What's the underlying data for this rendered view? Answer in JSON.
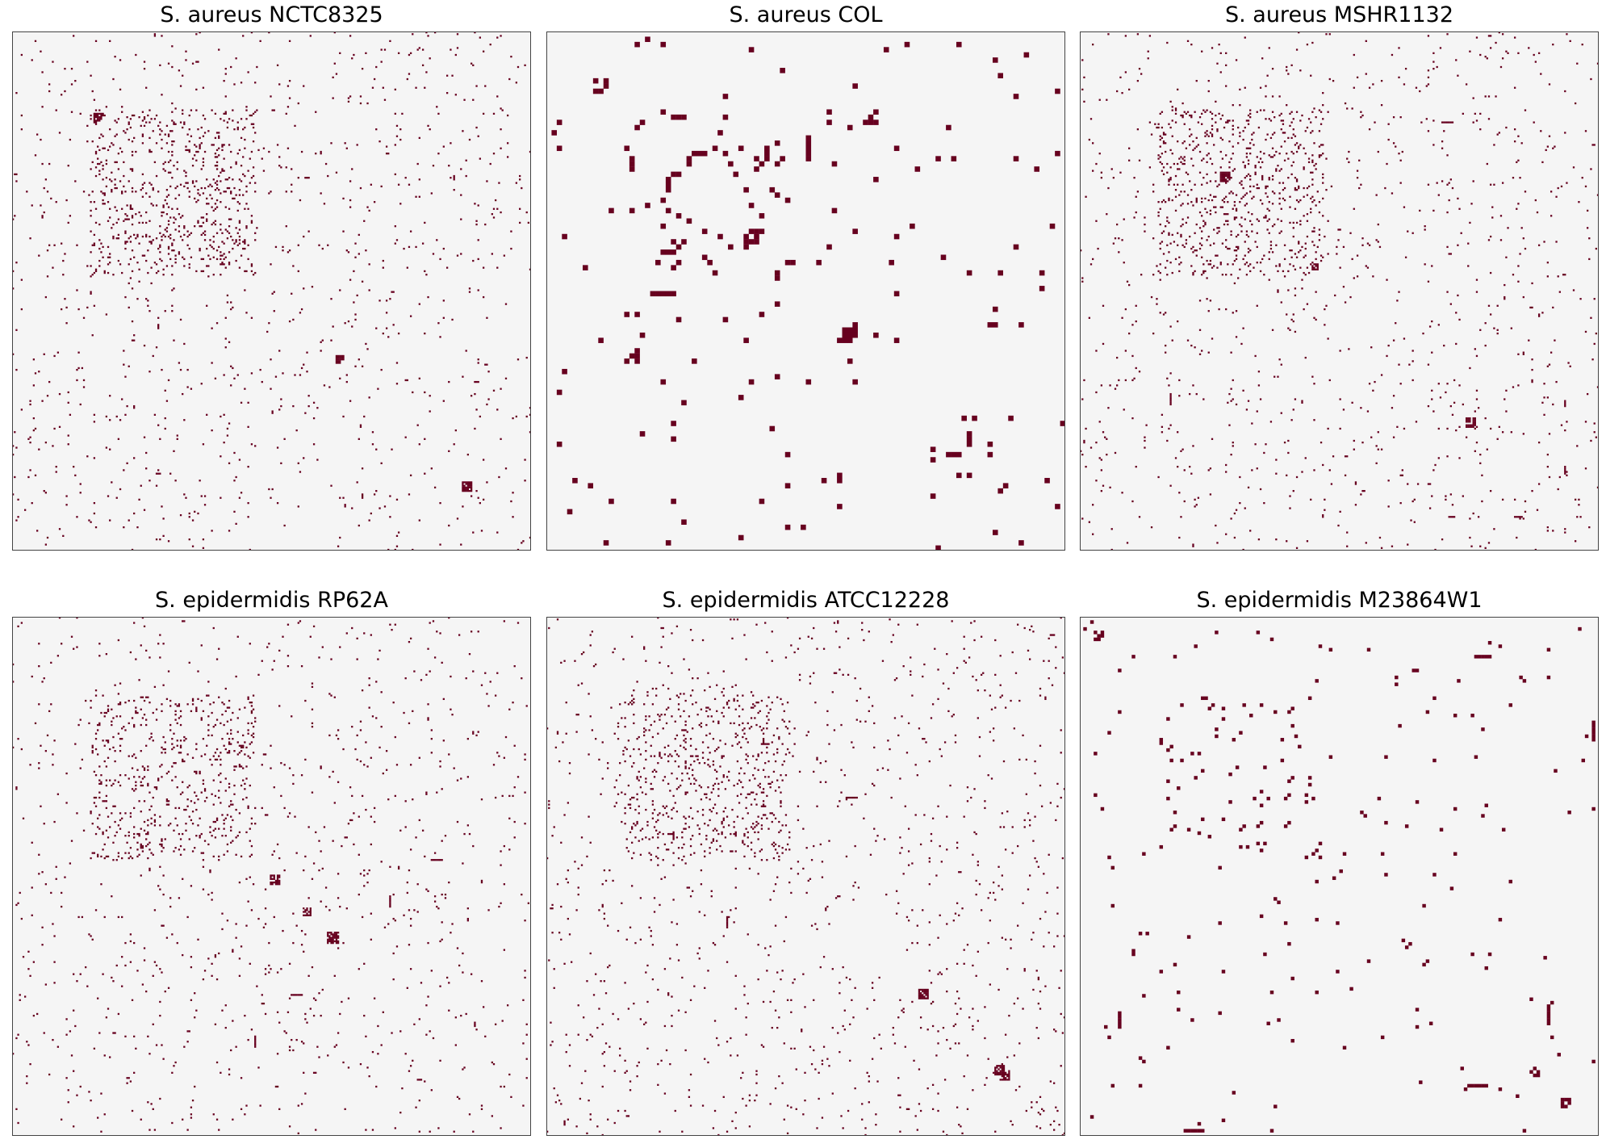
{
  "colors": {
    "background": "#f5f5f5",
    "mark": "#67001f",
    "frame": "#444444"
  },
  "chart_data": [
    {
      "type": "heatmap",
      "title": "S. aureus NCTC8325",
      "n": 300,
      "density": 0.018,
      "grid": false,
      "values": "binary"
    },
    {
      "type": "heatmap",
      "title": "S. aureus COL",
      "n": 100,
      "density": 0.02,
      "grid": false,
      "values": "binary"
    },
    {
      "type": "heatmap",
      "title": "S. aureus MSHR1132",
      "n": 300,
      "density": 0.018,
      "grid": false,
      "values": "binary"
    },
    {
      "type": "heatmap",
      "title": "S. epidermidis RP62A",
      "n": 300,
      "density": 0.016,
      "grid": false,
      "values": "binary"
    },
    {
      "type": "heatmap",
      "title": "S. epidermidis ATCC12228",
      "n": 300,
      "density": 0.018,
      "grid": false,
      "values": "binary"
    },
    {
      "type": "heatmap",
      "title": "S. epidermidis M23864W1",
      "n": 150,
      "density": 0.01,
      "grid": false,
      "values": "binary"
    }
  ]
}
